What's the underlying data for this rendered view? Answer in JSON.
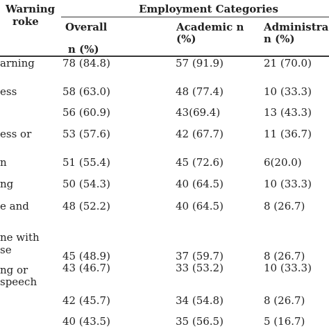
{
  "table": {
    "left_header_line1": "Warning",
    "left_header_line2": "roke",
    "group_header": "Employment Categories",
    "columns": {
      "overall": "Overall",
      "overall_sub": "n (%)",
      "academic": "Academic n",
      "academic_sub": "(%)",
      "administrative": "Administra",
      "administrative_sub": "n (%)"
    },
    "rows": [
      {
        "label1": "arning",
        "label2": "",
        "overall": "78 (84.8)",
        "academic": "57 (91.9)",
        "administrative": "21 (70.0)"
      },
      {
        "label1": "ess",
        "label2": "",
        "overall": "58 (63.0)",
        "academic": "48 (77.4)",
        "administrative": "10 (33.3)"
      },
      {
        "label1": "",
        "label2": "",
        "overall": "56 (60.9)",
        "academic": "43(69.4)",
        "administrative": "13 (43.3)"
      },
      {
        "label1": "ess or",
        "label2": "",
        "overall": "53 (57.6)",
        "academic": "42 (67.7)",
        "administrative": "11 (36.7)"
      },
      {
        "label1": "n",
        "label2": "",
        "overall": "51 (55.4)",
        "academic": "45 (72.6)",
        "administrative": "6(20.0)"
      },
      {
        "label1": "ng",
        "label2": "",
        "overall": "50 (54.3)",
        "academic": "40 (64.5)",
        "administrative": "10 (33.3)"
      },
      {
        "label1": "e and",
        "label2": "",
        "overall": "48 (52.2)",
        "academic": "40 (64.5)",
        "administrative": "8 (26.7)"
      },
      {
        "label1": "ne with",
        "label2": "se",
        "overall": "45 (48.9)",
        "academic": "37 (59.7)",
        "administrative": "8 (26.7)"
      },
      {
        "label1": "ng or",
        "label2": "speech",
        "overall": "43 (46.7)",
        "academic": "33 (53.2)",
        "administrative": "10 (33.3)"
      },
      {
        "label1": "",
        "label2": "",
        "overall": "42 (45.7)",
        "academic": "34 (54.8)",
        "administrative": "8 (26.7)"
      },
      {
        "label1": "",
        "label2": "",
        "overall": "40 (43.5)",
        "academic": "35 (56.5)",
        "administrative": "5 (16.7)"
      }
    ]
  }
}
